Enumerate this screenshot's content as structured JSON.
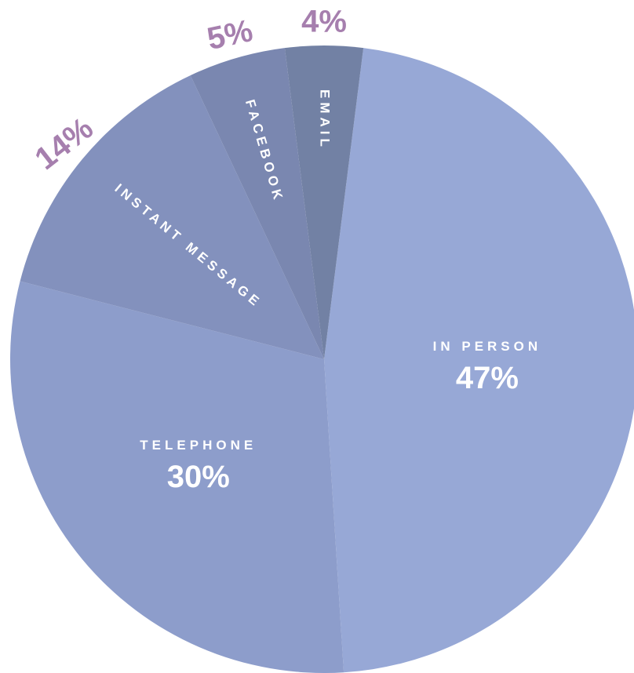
{
  "chart_data": {
    "type": "pie",
    "categories": [
      "IN PERSON",
      "TELEPHONE",
      "INSTANT MESSAGE",
      "FACEBOOK",
      "EMAIL"
    ],
    "values": [
      47,
      30,
      14,
      5,
      4
    ],
    "value_labels": [
      "47%",
      "30%",
      "14%",
      "5%",
      "4%"
    ],
    "colors": [
      "#97a8d6",
      "#8d9dcb",
      "#8391bd",
      "#7a87b0",
      "#7281a4"
    ]
  }
}
